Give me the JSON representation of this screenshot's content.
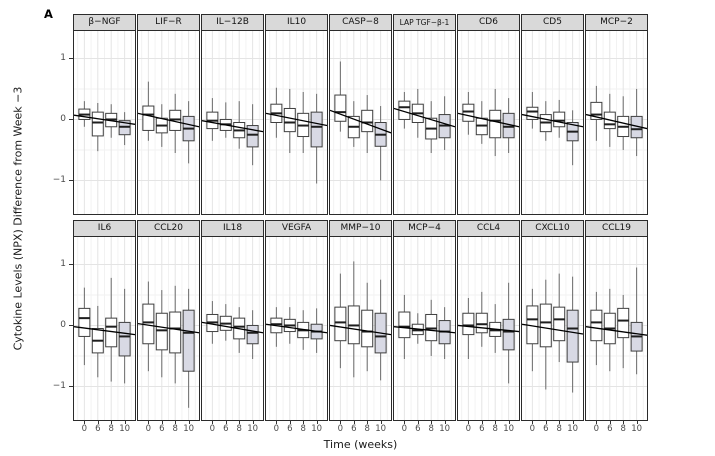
{
  "panel_label": "A",
  "axes": {
    "y_label": "Cytokine Levels (NPX) Difference from Week −3",
    "x_label": "Time (weeks)",
    "y_ticks": [
      "1",
      "0",
      "−1"
    ],
    "x_ticks": [
      "0",
      "6",
      "8",
      "10"
    ]
  },
  "colors": {
    "strip_fill": "#d9d9d9",
    "strip_border": "#2b2b2b",
    "panel_border": "#2b2b2b",
    "grid_major": "#e4e4e4",
    "grid_minor": "#f2f2f2",
    "box_fill": "#ffffff",
    "box_highlight": "#d8d9e4",
    "box_stroke": "#3f3f3f",
    "median": "#1e1e1e",
    "whisker": "#6b6b6b",
    "trend": "#000000",
    "tick": "#333333"
  },
  "chart_data": {
    "type": "boxplot-facets",
    "rows": 2,
    "cols": 9,
    "x_categories": [
      0,
      6,
      8,
      10
    ],
    "ylim": [
      -1.55,
      1.45
    ],
    "grid": true,
    "highlight_last_box": true,
    "box_stats_order": [
      "whisker_low",
      "q1",
      "median",
      "q3",
      "whisker_high"
    ],
    "trend_note": "per-facet linear fit line, values at panel left and right edges",
    "facets": [
      {
        "name": "β−NGF",
        "boxes": [
          [
            -0.12,
            0.0,
            0.08,
            0.17,
            0.3
          ],
          [
            -0.52,
            -0.27,
            -0.05,
            0.12,
            0.27
          ],
          [
            -0.3,
            -0.12,
            0.0,
            0.1,
            0.25
          ],
          [
            -0.42,
            -0.25,
            -0.12,
            -0.02,
            0.12
          ]
        ],
        "trend": [
          0.07,
          -0.08
        ]
      },
      {
        "name": "LIF−R",
        "boxes": [
          [
            -0.35,
            -0.18,
            0.08,
            0.22,
            0.62
          ],
          [
            -0.45,
            -0.22,
            -0.1,
            0.02,
            0.25
          ],
          [
            -0.55,
            -0.18,
            0.0,
            0.15,
            0.42
          ],
          [
            -0.72,
            -0.35,
            -0.15,
            0.05,
            0.3
          ]
        ],
        "trend": [
          0.1,
          -0.12
        ]
      },
      {
        "name": "IL−12B",
        "boxes": [
          [
            -0.35,
            -0.15,
            -0.02,
            0.12,
            0.35
          ],
          [
            -0.3,
            -0.18,
            -0.08,
            0.0,
            0.28
          ],
          [
            -0.48,
            -0.3,
            -0.18,
            -0.05,
            0.3
          ],
          [
            -0.75,
            -0.45,
            -0.25,
            -0.1,
            0.25
          ]
        ],
        "trend": [
          -0.02,
          -0.2
        ]
      },
      {
        "name": "IL10",
        "boxes": [
          [
            -0.3,
            -0.05,
            0.1,
            0.25,
            0.52
          ],
          [
            -0.55,
            -0.2,
            -0.05,
            0.18,
            0.5
          ],
          [
            -0.55,
            -0.28,
            -0.1,
            0.1,
            0.45
          ],
          [
            -1.05,
            -0.45,
            -0.12,
            0.12,
            0.42
          ]
        ],
        "trend": [
          0.1,
          -0.1
        ]
      },
      {
        "name": "CASP−8",
        "boxes": [
          [
            -0.2,
            -0.03,
            0.12,
            0.4,
            0.95
          ],
          [
            -0.45,
            -0.3,
            -0.12,
            0.05,
            0.3
          ],
          [
            -0.55,
            -0.2,
            -0.05,
            0.15,
            0.4
          ],
          [
            -1.0,
            -0.44,
            -0.25,
            -0.05,
            0.22
          ]
        ],
        "trend": [
          0.15,
          -0.22
        ]
      },
      {
        "name": "LAP TGF−β-1",
        "boxes": [
          [
            -0.15,
            0.0,
            0.2,
            0.3,
            0.45
          ],
          [
            -0.3,
            -0.05,
            0.1,
            0.25,
            0.5
          ],
          [
            -0.55,
            -0.32,
            -0.15,
            0.02,
            0.3
          ],
          [
            -0.5,
            -0.3,
            -0.1,
            0.08,
            0.38
          ]
        ],
        "trend": [
          0.18,
          -0.12
        ]
      },
      {
        "name": "CD6",
        "boxes": [
          [
            -0.25,
            -0.03,
            0.13,
            0.25,
            0.45
          ],
          [
            -0.4,
            -0.25,
            -0.1,
            0.02,
            0.3
          ],
          [
            -0.6,
            -0.3,
            -0.02,
            0.15,
            0.5
          ],
          [
            -0.55,
            -0.3,
            -0.12,
            0.1,
            0.35
          ]
        ],
        "trend": [
          0.1,
          -0.12
        ]
      },
      {
        "name": "CD5",
        "boxes": [
          [
            -0.15,
            0.0,
            0.13,
            0.2,
            0.45
          ],
          [
            -0.35,
            -0.2,
            -0.05,
            0.08,
            0.3
          ],
          [
            -0.3,
            -0.12,
            -0.02,
            0.12,
            0.32
          ],
          [
            -0.75,
            -0.35,
            -0.2,
            -0.05,
            0.15
          ]
        ],
        "trend": [
          0.08,
          -0.12
        ]
      },
      {
        "name": "MCP−2",
        "boxes": [
          [
            -0.35,
            0.0,
            0.08,
            0.28,
            0.55
          ],
          [
            -0.45,
            -0.15,
            -0.08,
            0.12,
            0.42
          ],
          [
            -0.5,
            -0.28,
            -0.12,
            0.05,
            0.38
          ],
          [
            -0.6,
            -0.3,
            -0.16,
            0.05,
            0.5
          ]
        ],
        "trend": [
          0.08,
          -0.15
        ]
      },
      {
        "name": "IL6",
        "boxes": [
          [
            -0.65,
            -0.18,
            0.12,
            0.28,
            0.62
          ],
          [
            -0.85,
            -0.45,
            -0.25,
            -0.05,
            0.32
          ],
          [
            -0.92,
            -0.35,
            -0.02,
            0.12,
            0.78
          ],
          [
            -0.95,
            -0.5,
            -0.18,
            0.05,
            0.6
          ]
        ],
        "trend": [
          -0.02,
          -0.15
        ]
      },
      {
        "name": "CCL20",
        "boxes": [
          [
            -0.75,
            -0.3,
            0.05,
            0.35,
            0.72
          ],
          [
            -0.85,
            -0.4,
            -0.08,
            0.2,
            0.58
          ],
          [
            -0.95,
            -0.45,
            -0.05,
            0.22,
            0.65
          ],
          [
            -1.35,
            -0.75,
            -0.12,
            0.25,
            0.6
          ]
        ],
        "trend": [
          0.03,
          -0.12
        ]
      },
      {
        "name": "IL18",
        "boxes": [
          [
            -0.3,
            -0.1,
            0.05,
            0.18,
            0.4
          ],
          [
            -0.25,
            -0.08,
            0.03,
            0.15,
            0.35
          ],
          [
            -0.45,
            -0.22,
            -0.02,
            0.12,
            0.3
          ],
          [
            -0.55,
            -0.3,
            -0.12,
            0.0,
            0.25
          ]
        ],
        "trend": [
          0.05,
          -0.12
        ]
      },
      {
        "name": "VEGFA",
        "boxes": [
          [
            -0.35,
            -0.12,
            0.02,
            0.12,
            0.3
          ],
          [
            -0.3,
            -0.1,
            0.0,
            0.1,
            0.3
          ],
          [
            -0.4,
            -0.2,
            -0.08,
            0.05,
            0.25
          ],
          [
            -0.45,
            -0.22,
            -0.1,
            0.02,
            0.28
          ]
        ],
        "trend": [
          0.02,
          -0.12
        ]
      },
      {
        "name": "MMP−10",
        "boxes": [
          [
            -0.7,
            -0.25,
            0.05,
            0.3,
            0.85
          ],
          [
            -0.85,
            -0.3,
            0.0,
            0.32,
            1.05
          ],
          [
            -0.75,
            -0.35,
            -0.1,
            0.25,
            0.7
          ],
          [
            -0.9,
            -0.45,
            -0.18,
            0.2,
            0.75
          ]
        ],
        "trend": [
          0.0,
          -0.15
        ]
      },
      {
        "name": "MCP−4",
        "boxes": [
          [
            -0.55,
            -0.2,
            -0.02,
            0.22,
            0.5
          ],
          [
            -0.3,
            -0.15,
            -0.08,
            0.02,
            0.2
          ],
          [
            -0.5,
            -0.25,
            -0.05,
            0.18,
            0.42
          ],
          [
            -0.55,
            -0.3,
            -0.1,
            0.08,
            0.3
          ]
        ],
        "trend": [
          -0.02,
          -0.12
        ]
      },
      {
        "name": "CCL4",
        "boxes": [
          [
            -0.55,
            -0.15,
            0.0,
            0.2,
            0.45
          ],
          [
            -0.35,
            -0.12,
            0.02,
            0.2,
            0.55
          ],
          [
            -0.45,
            -0.18,
            -0.08,
            0.05,
            0.35
          ],
          [
            -0.95,
            -0.4,
            -0.1,
            0.1,
            0.7
          ]
        ],
        "trend": [
          0.0,
          -0.1
        ]
      },
      {
        "name": "CXCL10",
        "boxes": [
          [
            -0.75,
            -0.3,
            0.1,
            0.32,
            0.6
          ],
          [
            -1.05,
            -0.35,
            0.05,
            0.35,
            0.75
          ],
          [
            -0.6,
            -0.25,
            0.1,
            0.3,
            0.85
          ],
          [
            -1.1,
            -0.6,
            -0.05,
            0.25,
            0.8
          ]
        ],
        "trend": [
          0.02,
          -0.14
        ]
      },
      {
        "name": "CCL19",
        "boxes": [
          [
            -0.65,
            -0.25,
            0.05,
            0.25,
            0.55
          ],
          [
            -0.75,
            -0.3,
            -0.05,
            0.2,
            0.6
          ],
          [
            -0.7,
            -0.2,
            0.08,
            0.28,
            0.5
          ],
          [
            -0.8,
            -0.42,
            -0.18,
            0.05,
            0.95
          ]
        ],
        "trend": [
          -0.02,
          -0.16
        ]
      }
    ]
  }
}
